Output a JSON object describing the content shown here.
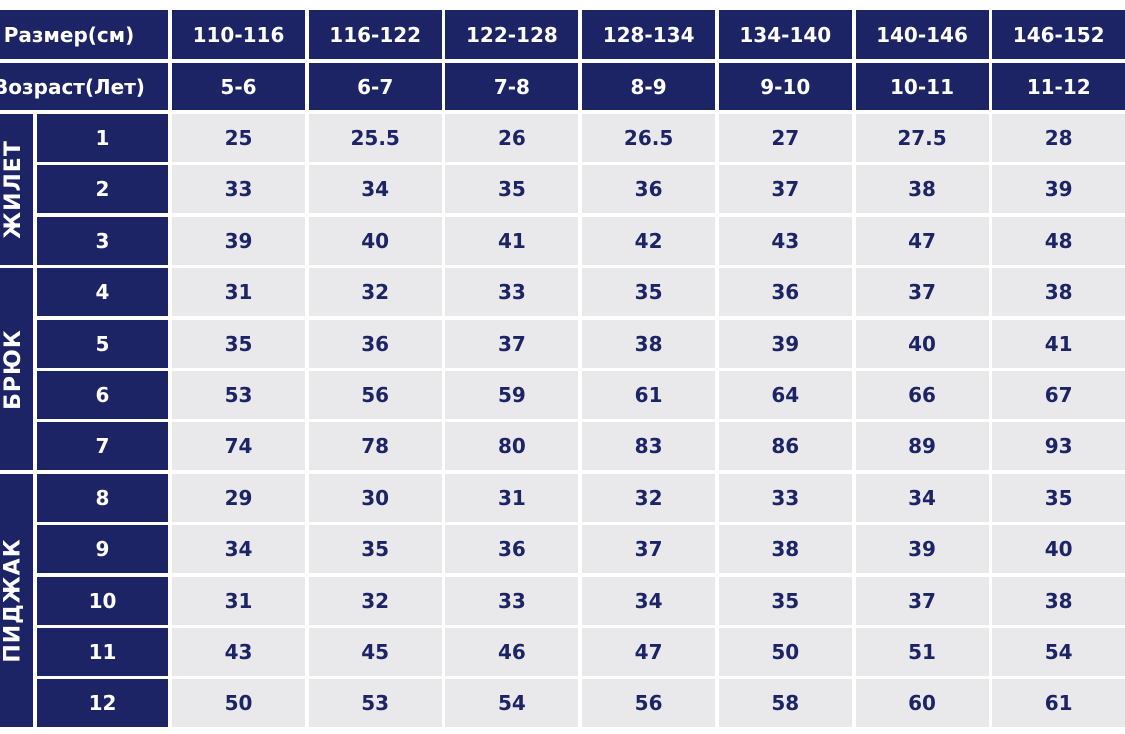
{
  "header": {
    "size_label": "Размер(см)",
    "sizes": [
      "110-116",
      "116-122",
      "122-128",
      "128-134",
      "134-140",
      "140-146",
      "146-152"
    ],
    "age_label": "Возраст(Лет)",
    "ages": [
      "5-6",
      "6-7",
      "7-8",
      "8-9",
      "9-10",
      "10-11",
      "11-12"
    ]
  },
  "groups": [
    {
      "name": "ЖИЛЕТ",
      "rows": [
        {
          "num": 1,
          "values": [
            25,
            25.5,
            26,
            26.5,
            27,
            27.5,
            28
          ]
        },
        {
          "num": 2,
          "values": [
            33,
            34,
            35,
            36,
            37,
            38,
            39
          ]
        },
        {
          "num": 3,
          "values": [
            39,
            40,
            41,
            42,
            43,
            47,
            48
          ]
        }
      ]
    },
    {
      "name": "БРЮК",
      "rows": [
        {
          "num": 4,
          "values": [
            31,
            32,
            33,
            35,
            36,
            37,
            38
          ]
        },
        {
          "num": 5,
          "values": [
            35,
            36,
            37,
            38,
            39,
            40,
            41
          ]
        },
        {
          "num": 6,
          "values": [
            53,
            56,
            59,
            61,
            64,
            66,
            67
          ]
        },
        {
          "num": 7,
          "values": [
            74,
            78,
            80,
            83,
            86,
            89,
            93
          ]
        }
      ]
    },
    {
      "name": "ПИДЖАК",
      "rows": [
        {
          "num": 8,
          "values": [
            29,
            30,
            31,
            32,
            33,
            34,
            35
          ]
        },
        {
          "num": 9,
          "values": [
            34,
            35,
            36,
            37,
            38,
            39,
            40
          ]
        },
        {
          "num": 10,
          "values": [
            31,
            32,
            33,
            34,
            35,
            37,
            38
          ]
        },
        {
          "num": 11,
          "values": [
            43,
            45,
            46,
            47,
            50,
            51,
            54
          ]
        },
        {
          "num": 12,
          "values": [
            50,
            53,
            54,
            56,
            58,
            60,
            61
          ]
        }
      ]
    }
  ]
}
